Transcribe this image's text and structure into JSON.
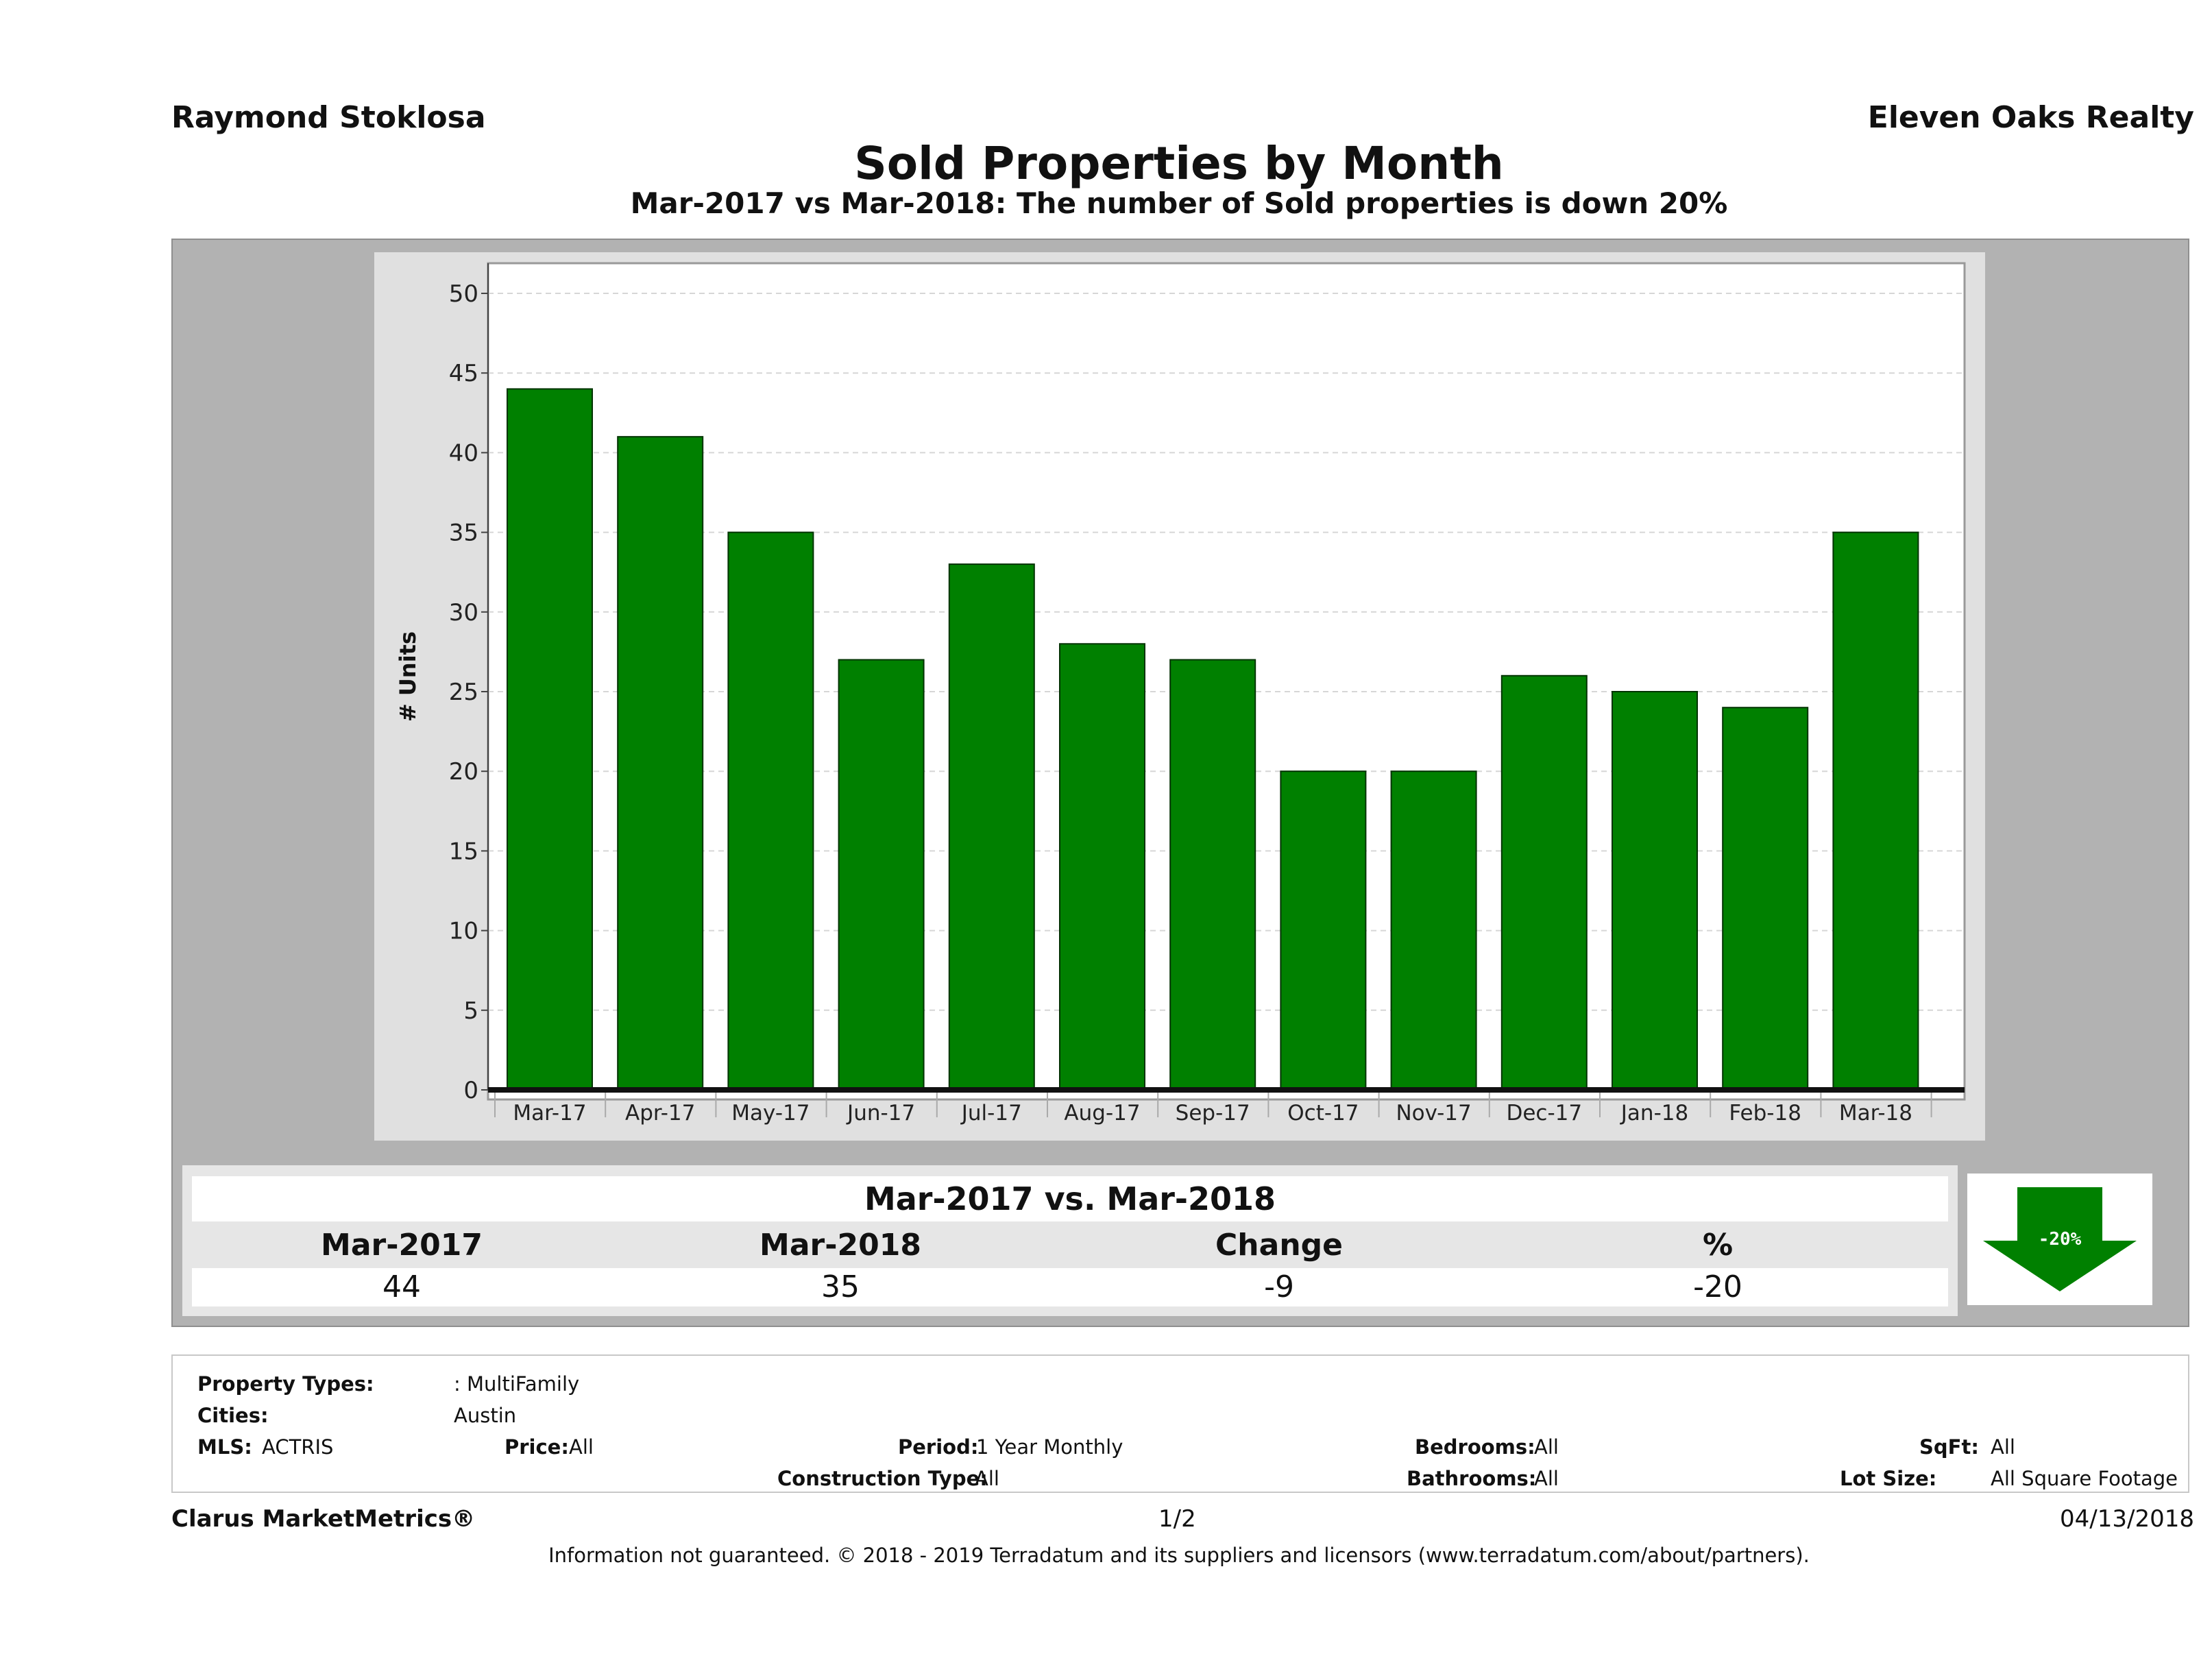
{
  "header": {
    "agent_name": "Raymond Stoklosa",
    "brokerage": "Eleven Oaks Realty"
  },
  "chart_data": {
    "type": "bar",
    "title": "Sold Properties by Month",
    "subtitle": "Mar-2017 vs Mar-2018: The number of Sold  properties is down 20%",
    "xlabel": "",
    "ylabel": "# Units",
    "ylim": [
      0,
      52
    ],
    "yticks": [
      "0",
      "5",
      "10",
      "15",
      "20",
      "25",
      "30",
      "35",
      "40",
      "45",
      "50"
    ],
    "grid": true,
    "categories": [
      "Mar-17",
      "Apr-17",
      "May-17",
      "Jun-17",
      "Jul-17",
      "Aug-17",
      "Sep-17",
      "Oct-17",
      "Nov-17",
      "Dec-17",
      "Jan-18",
      "Feb-18",
      "Mar-18"
    ],
    "values": [
      44,
      41,
      35,
      27,
      33,
      28,
      27,
      20,
      20,
      26,
      25,
      24,
      35
    ],
    "bar_color": "#008000"
  },
  "summary": {
    "title": "Mar-2017 vs. Mar-2018",
    "headers": [
      "Mar-2017",
      "Mar-2018",
      "Change",
      "%"
    ],
    "values": [
      "44",
      "35",
      "-9",
      "-20"
    ],
    "badge": "-20%",
    "badge_icon": "down-arrow-icon",
    "badge_color": "#008000"
  },
  "filters": {
    "property_types_label": "Property Types:",
    "property_types_value": ": MultiFamily",
    "cities_label": "Cities:",
    "cities_value": "Austin",
    "mls_label": "MLS:",
    "mls_value": "ACTRIS",
    "price_label": "Price:",
    "price_value": "All",
    "period_label": "Period:",
    "period_value": "1 Year Monthly",
    "bedrooms_label": "Bedrooms:",
    "bedrooms_value": "All",
    "sqft_label": "SqFt:",
    "sqft_value": "All",
    "construction_label": "Construction Type:",
    "construction_value": "All",
    "bathrooms_label": "Bathrooms:",
    "bathrooms_value": "All",
    "lot_size_label": "Lot Size:",
    "lot_size_value": "All Square Footage"
  },
  "footer": {
    "product": "Clarus MarketMetrics®",
    "page": "1/2",
    "date": "04/13/2018",
    "disclaimer": "Information not guaranteed. © 2018 - 2019 Terradatum and its suppliers and licensors (www.terradatum.com/about/partners)."
  }
}
